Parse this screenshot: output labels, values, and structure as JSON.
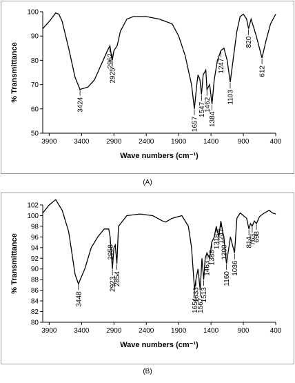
{
  "chart_data": [
    {
      "type": "line",
      "caption": "(A)",
      "xlabel": "Wave numbers (cm⁻¹)",
      "ylabel": "% Transmittance",
      "xlim": [
        4000,
        400
      ],
      "xticks": [
        3900,
        3400,
        2900,
        2400,
        1900,
        1400,
        900,
        400
      ],
      "ylim": [
        50,
        100
      ],
      "yticks": [
        50,
        60,
        70,
        80,
        90,
        100
      ],
      "series": [
        {
          "name": null,
          "color": "#000000",
          "x": [
            4000,
            3900,
            3800,
            3750,
            3700,
            3600,
            3500,
            3424,
            3300,
            3200,
            3100,
            3000,
            2962,
            2940,
            2925,
            2900,
            2850,
            2800,
            2700,
            2600,
            2400,
            2200,
            2000,
            1900,
            1800,
            1700,
            1657,
            1620,
            1600,
            1570,
            1547,
            1520,
            1480,
            1462,
            1420,
            1384,
            1350,
            1300,
            1247,
            1200,
            1150,
            1103,
            1050,
            1000,
            950,
            900,
            850,
            820,
            780,
            700,
            612,
            550,
            480,
            400
          ],
          "values": [
            93,
            96,
            99.5,
            99,
            96,
            85,
            73,
            68,
            69,
            72,
            78,
            84,
            86,
            82,
            80,
            84,
            86,
            92,
            97,
            98,
            98,
            97,
            95,
            90,
            82,
            70,
            60,
            70,
            74,
            72,
            66,
            74,
            76,
            68,
            70,
            62,
            72,
            80,
            84,
            85,
            80,
            71,
            82,
            92,
            98,
            99,
            97,
            93,
            97,
            90,
            81,
            88,
            95,
            99
          ]
        }
      ],
      "annotations": [
        {
          "x": 3424,
          "y": 68
        },
        {
          "x": 2962,
          "y": 86
        },
        {
          "x": 2925,
          "y": 80
        },
        {
          "x": 1657,
          "y": 60
        },
        {
          "x": 1547,
          "y": 66
        },
        {
          "x": 1462,
          "y": 68
        },
        {
          "x": 1384,
          "y": 62
        },
        {
          "x": 1247,
          "y": 84
        },
        {
          "x": 1103,
          "y": 71
        },
        {
          "x": 820,
          "y": 93
        },
        {
          "x": 612,
          "y": 81
        }
      ]
    },
    {
      "type": "line",
      "caption": "(B)",
      "xlabel": "Wave numbers (cm⁻¹)",
      "ylabel": "% Transmittance",
      "xlim": [
        4000,
        400
      ],
      "xticks": [
        3900,
        3400,
        2900,
        2400,
        1900,
        1400,
        900,
        400
      ],
      "ylim": [
        80,
        102
      ],
      "yticks": [
        80,
        82,
        84,
        86,
        88,
        90,
        92,
        94,
        96,
        98,
        100,
        102
      ],
      "series": [
        {
          "name": null,
          "color": "#000000",
          "x": [
            4000,
            3900,
            3800,
            3700,
            3600,
            3550,
            3500,
            3448,
            3350,
            3250,
            3150,
            3050,
            2980,
            2958,
            2923,
            2900,
            2880,
            2854,
            2830,
            2700,
            2500,
            2300,
            2150,
            2100,
            2000,
            1850,
            1750,
            1700,
            1654,
            1633,
            1600,
            1567,
            1540,
            1513,
            1490,
            1463,
            1420,
            1388,
            1350,
            1318,
            1280,
            1247,
            1220,
            1200,
            1180,
            1160,
            1100,
            1036,
            1000,
            950,
            900,
            850,
            814,
            790,
            763,
            730,
            698,
            650,
            600,
            500,
            450,
            400
          ],
          "values": [
            100.5,
            102,
            103,
            101,
            97,
            93,
            89,
            87.2,
            90,
            94,
            96,
            97.5,
            97.5,
            96,
            90,
            94,
            94.5,
            91,
            98,
            100,
            100.3,
            100,
            99,
            98.8,
            99.5,
            100,
            98,
            94,
            86,
            88,
            90,
            86,
            92,
            88,
            92,
            93,
            92,
            95,
            96,
            98,
            96,
            99,
            97,
            96,
            93,
            91,
            96,
            93,
            99.5,
            100.5,
            100,
            99.5,
            97.5,
            98.5,
            98,
            99,
            98.5,
            99.8,
            100.3,
            101,
            100.5,
            100.3
          ]
        }
      ],
      "annotations": [
        {
          "x": 3448,
          "y": 87.2
        },
        {
          "x": 2958,
          "y": 96
        },
        {
          "x": 2923,
          "y": 90
        },
        {
          "x": 2854,
          "y": 91
        },
        {
          "x": 1654,
          "y": 86
        },
        {
          "x": 1633,
          "y": 88
        },
        {
          "x": 1567,
          "y": 86
        },
        {
          "x": 1513,
          "y": 88
        },
        {
          "x": 1463,
          "y": 93
        },
        {
          "x": 1388,
          "y": 95
        },
        {
          "x": 1318,
          "y": 98
        },
        {
          "x": 1247,
          "y": 99
        },
        {
          "x": 1200,
          "y": 96
        },
        {
          "x": 1160,
          "y": 91
        },
        {
          "x": 1036,
          "y": 93
        },
        {
          "x": 814,
          "y": 97.5
        },
        {
          "x": 763,
          "y": 98
        },
        {
          "x": 698,
          "y": 98.5
        }
      ]
    }
  ]
}
